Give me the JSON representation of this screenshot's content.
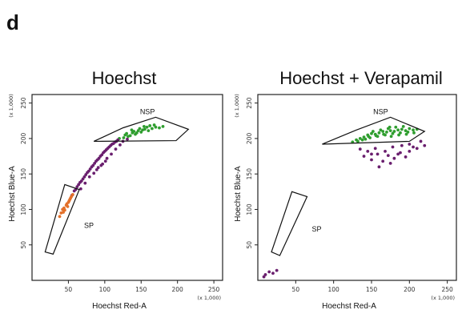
{
  "panel_label": "d",
  "chart_data": [
    {
      "type": "scatter",
      "title": "Hoechst",
      "xlabel": "Hoechst Red-A",
      "ylabel": "Hoechst Blue-A",
      "x_multiplier": "(x 1,000)",
      "y_multiplier": "(x 1,000)",
      "xlim": [
        0,
        262
      ],
      "ylim": [
        0,
        262
      ],
      "xticks": [
        50,
        100,
        150,
        200,
        250
      ],
      "yticks": [
        50,
        100,
        150,
        200,
        250
      ],
      "gates": [
        {
          "name": "NSP",
          "polygon": [
            [
              85,
              196
            ],
            [
              125,
              215
            ],
            [
              170,
              230
            ],
            [
              215,
              213
            ],
            [
              198,
              197
            ]
          ]
        },
        {
          "name": "SP",
          "polygon": [
            [
              18,
              40
            ],
            [
              29,
              37
            ],
            [
              65,
              128
            ],
            [
              45,
              135
            ]
          ]
        }
      ],
      "populations": [
        {
          "color": "#2f9e2f",
          "description_free": true,
          "points": [
            [
              120,
              200
            ],
            [
              128,
              205
            ],
            [
              132,
              203
            ],
            [
              138,
              208
            ],
            [
              142,
              206
            ],
            [
              146,
              211
            ],
            [
              150,
              209
            ],
            [
              155,
              213
            ],
            [
              160,
              211
            ],
            [
              165,
              214
            ],
            [
              158,
              216
            ],
            [
              140,
              210
            ],
            [
              135,
              204
            ],
            [
              148,
              214
            ],
            [
              170,
              216
            ],
            [
              162,
              218
            ],
            [
              152,
              212
            ],
            [
              144,
              208
            ],
            [
              126,
              201
            ],
            [
              130,
              207
            ],
            [
              175,
              215
            ],
            [
              180,
              217
            ],
            [
              137,
              212
            ],
            [
              154,
              217
            ],
            [
              168,
              219
            ]
          ]
        },
        {
          "color": "#6a1f6e",
          "points": [
            [
              55,
              120
            ],
            [
              58,
              126
            ],
            [
              62,
              132
            ],
            [
              66,
              138
            ],
            [
              70,
              143
            ],
            [
              74,
              149
            ],
            [
              78,
              154
            ],
            [
              82,
              160
            ],
            [
              86,
              165
            ],
            [
              90,
              170
            ],
            [
              94,
              175
            ],
            [
              98,
              180
            ],
            [
              102,
              184
            ],
            [
              106,
              188
            ],
            [
              110,
              192
            ],
            [
              114,
              195
            ],
            [
              118,
              198
            ],
            [
              60,
              128
            ],
            [
              64,
              135
            ],
            [
              68,
              140
            ],
            [
              72,
              146
            ],
            [
              76,
              152
            ],
            [
              80,
              157
            ],
            [
              84,
              162
            ],
            [
              88,
              168
            ],
            [
              92,
              172
            ],
            [
              96,
              177
            ],
            [
              100,
              182
            ],
            [
              104,
              186
            ],
            [
              108,
              190
            ],
            [
              112,
              193
            ],
            [
              116,
              196
            ],
            [
              67,
              129
            ],
            [
              73,
              137
            ],
            [
              79,
              146
            ],
            [
              85,
              151
            ],
            [
              91,
              159
            ],
            [
              97,
              164
            ],
            [
              103,
              172
            ],
            [
              109,
              178
            ],
            [
              115,
              185
            ],
            [
              121,
              191
            ],
            [
              125,
              196
            ],
            [
              131,
              199
            ],
            [
              89,
              156
            ],
            [
              95,
              162
            ],
            [
              101,
              168
            ]
          ]
        },
        {
          "color": "#e3702a",
          "points": [
            [
              40,
              95
            ],
            [
              44,
              102
            ],
            [
              48,
              108
            ],
            [
              52,
              114
            ],
            [
              45,
              99
            ],
            [
              50,
              110
            ],
            [
              54,
              118
            ],
            [
              42,
              100
            ],
            [
              47,
              106
            ],
            [
              53,
              116
            ],
            [
              38,
              90
            ],
            [
              56,
              121
            ],
            [
              49,
              104
            ],
            [
              43,
              96
            ],
            [
              51,
              112
            ]
          ]
        }
      ]
    },
    {
      "type": "scatter",
      "title": "Hoechst + Verapamil",
      "xlabel": "Hoechst Red-A",
      "ylabel": "Hoechst Blue-A",
      "x_multiplier": "(x 1,000)",
      "y_multiplier": "(x 1,000)",
      "xlim": [
        0,
        262
      ],
      "ylim": [
        0,
        262
      ],
      "xticks": [
        50,
        100,
        150,
        200,
        250
      ],
      "yticks": [
        50,
        100,
        150,
        200,
        250
      ],
      "gates": [
        {
          "name": "NSP",
          "polygon": [
            [
              85,
              192
            ],
            [
              130,
              212
            ],
            [
              175,
              230
            ],
            [
              220,
              210
            ],
            [
              200,
              196
            ]
          ]
        },
        {
          "name": "SP",
          "polygon": [
            [
              18,
              40
            ],
            [
              29,
              35
            ],
            [
              65,
              118
            ],
            [
              45,
              125
            ]
          ]
        }
      ],
      "populations": [
        {
          "color": "#2f9e2f",
          "points": [
            [
              125,
              195
            ],
            [
              130,
              198
            ],
            [
              135,
              200
            ],
            [
              140,
              202
            ],
            [
              145,
              205
            ],
            [
              150,
              207
            ],
            [
              155,
              206
            ],
            [
              160,
              208
            ],
            [
              165,
              210
            ],
            [
              170,
              209
            ],
            [
              175,
              211
            ],
            [
              180,
              210
            ],
            [
              185,
              212
            ],
            [
              190,
              213
            ],
            [
              195,
              211
            ],
            [
              200,
              214
            ],
            [
              205,
              212
            ],
            [
              210,
              213
            ],
            [
              148,
              201
            ],
            [
              158,
              203
            ],
            [
              168,
              205
            ],
            [
              178,
              207
            ],
            [
              188,
              208
            ],
            [
              198,
              209
            ],
            [
              138,
              198
            ],
            [
              152,
              210
            ],
            [
              162,
              212
            ],
            [
              172,
              214
            ],
            [
              182,
              216
            ],
            [
              192,
              217
            ],
            [
              142,
              199
            ],
            [
              156,
              204
            ],
            [
              166,
              206
            ],
            [
              176,
              203
            ],
            [
              186,
              205
            ],
            [
              196,
              206
            ],
            [
              206,
              208
            ],
            [
              132,
              196
            ],
            [
              146,
              203
            ],
            [
              174,
              216
            ]
          ]
        },
        {
          "color": "#6a1f6e",
          "points": [
            [
              140,
              175
            ],
            [
              150,
              170
            ],
            [
              158,
              178
            ],
            [
              165,
              168
            ],
            [
              172,
              176
            ],
            [
              180,
              172
            ],
            [
              188,
              180
            ],
            [
              195,
              174
            ],
            [
              200,
              182
            ],
            [
              210,
              186
            ],
            [
              220,
              190
            ],
            [
              145,
              182
            ],
            [
              155,
              186
            ],
            [
              168,
              182
            ],
            [
              178,
              188
            ],
            [
              190,
              190
            ],
            [
              200,
              192
            ],
            [
              215,
              196
            ],
            [
              160,
              160
            ],
            [
              175,
              165
            ],
            [
              185,
              178
            ],
            [
              150,
              178
            ],
            [
              205,
              188
            ],
            [
              135,
              185
            ],
            [
              10,
              8
            ],
            [
              15,
              12
            ],
            [
              20,
              10
            ],
            [
              8,
              5
            ],
            [
              25,
              14
            ]
          ]
        }
      ]
    }
  ]
}
